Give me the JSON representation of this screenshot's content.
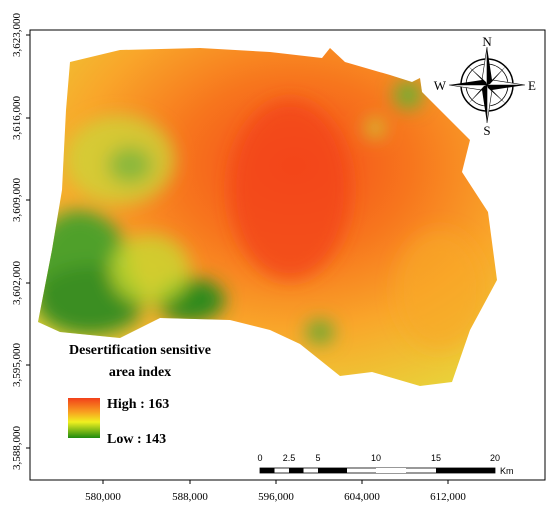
{
  "axes": {
    "x_ticks": [
      "580,000",
      "588,000",
      "596,000",
      "604,000",
      "612,000"
    ],
    "y_ticks": [
      "3,623,000",
      "3,616,000",
      "3,609,000",
      "3,602,000",
      "3,595,000",
      "3,588,000"
    ]
  },
  "compass": {
    "north": "N",
    "south": "S",
    "east": "E",
    "west": "W"
  },
  "legend": {
    "title_line1": "Desertification sensitive",
    "title_line2": "area index",
    "high": "High : 163",
    "low": "Low : 143"
  },
  "scale_bar": {
    "labels": [
      "0",
      "2.5",
      "5",
      "10",
      "15",
      "20"
    ],
    "unit": "Km"
  }
}
